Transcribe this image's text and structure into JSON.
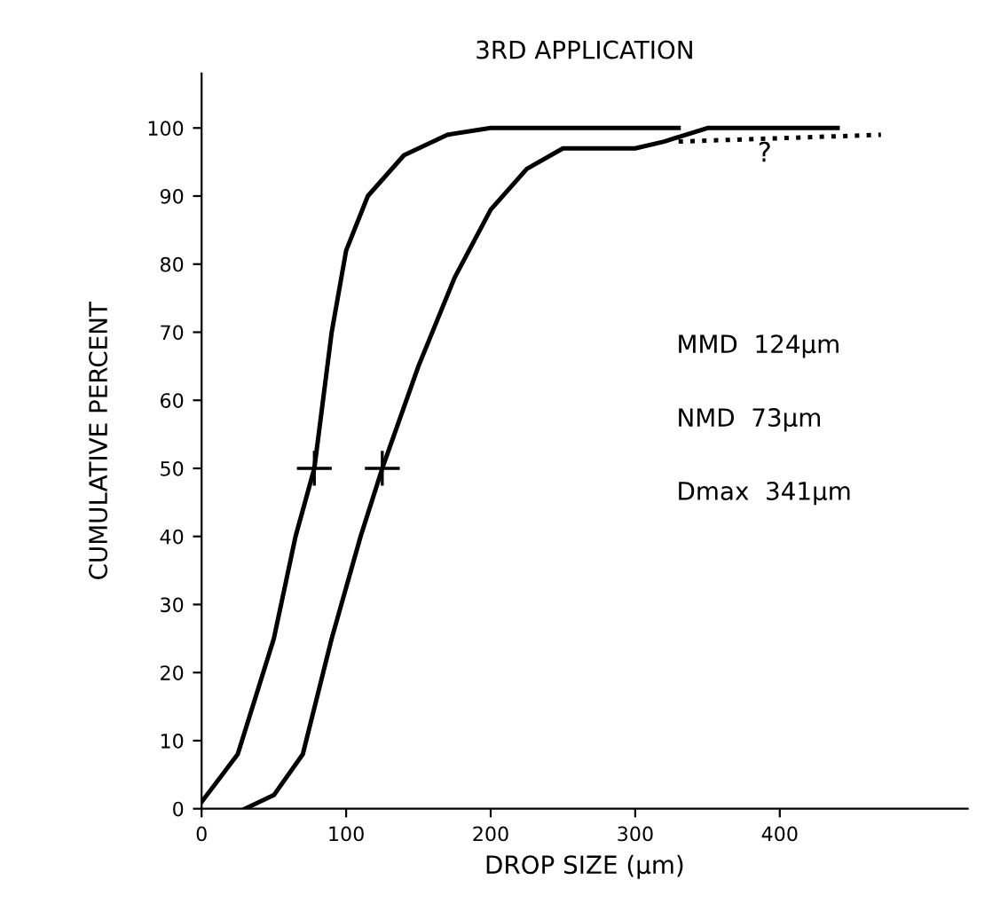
{
  "chart_data": {
    "type": "line",
    "title": "3RD APPLICATION",
    "xlabel": "DROP SIZE (µm)",
    "ylabel": "CUMULATIVE PERCENT",
    "xlim": [
      0,
      530
    ],
    "ylim": [
      0,
      108
    ],
    "xticks": [
      0,
      100,
      200,
      300,
      400
    ],
    "yticks": [
      0,
      10,
      20,
      30,
      40,
      50,
      60,
      70,
      80,
      90,
      100
    ],
    "grid": false,
    "legend": false,
    "marker": "none",
    "series": [
      {
        "color": "#000000",
        "line_style": "solid",
        "x": [
          0,
          25,
          50,
          65,
          78,
          90,
          100,
          115,
          140,
          170,
          200,
          250,
          300,
          330
        ],
        "values": [
          1,
          8,
          25,
          40,
          50,
          70,
          82,
          90,
          96,
          99,
          100,
          100,
          100,
          100
        ]
      },
      {
        "color": "#000000",
        "line_style": "solid",
        "x": [
          30,
          50,
          70,
          90,
          110,
          125,
          150,
          175,
          200,
          225,
          250,
          300,
          320,
          350,
          440
        ],
        "values": [
          0,
          2,
          8,
          25,
          40,
          50,
          65,
          78,
          88,
          94,
          97,
          97,
          98,
          100,
          100
        ]
      },
      {
        "type": "line",
        "color": "#000000",
        "line_style": "dotted",
        "x": [
          330,
          470
        ],
        "values": [
          98,
          99
        ]
      },
      {
        "type": "scatter",
        "color": "#000000",
        "marker": "cross",
        "x": [
          78,
          125
        ],
        "values": [
          50,
          50
        ]
      }
    ],
    "annotations": [
      "?",
      "MMD  124µm",
      "NMD  73µm",
      "Dmax  341µm"
    ]
  }
}
